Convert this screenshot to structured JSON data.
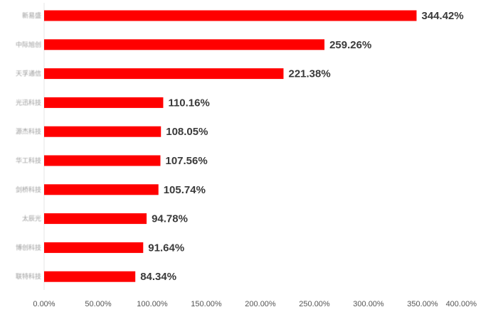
{
  "chart_data": {
    "type": "bar",
    "orientation": "horizontal",
    "categories": [
      "新易盛",
      "中际旭创",
      "天孚通信",
      "光迅科技",
      "源杰科技",
      "华工科技",
      "剑桥科技",
      "太辰光",
      "博创科技",
      "联特科技"
    ],
    "values": [
      344.42,
      259.26,
      221.38,
      110.16,
      108.05,
      107.56,
      105.74,
      94.78,
      91.64,
      84.34
    ],
    "value_labels": [
      "344.42%",
      "259.26%",
      "221.38%",
      "110.16%",
      "108.05%",
      "107.56%",
      "105.74%",
      "94.78%",
      "91.64%",
      "84.34%"
    ],
    "xlim": [
      0,
      400
    ],
    "x_ticks": [
      0,
      50,
      100,
      150,
      200,
      250,
      300,
      350,
      400
    ],
    "x_tick_labels": [
      "0.00%",
      "50.00%",
      "100.00%",
      "150.00%",
      "200.00%",
      "250.00%",
      "300.00%",
      "350.00%",
      "400.00%"
    ],
    "bar_color": "#ff0000",
    "grid": false,
    "legend": "none",
    "title": "",
    "xlabel": "",
    "ylabel": ""
  }
}
